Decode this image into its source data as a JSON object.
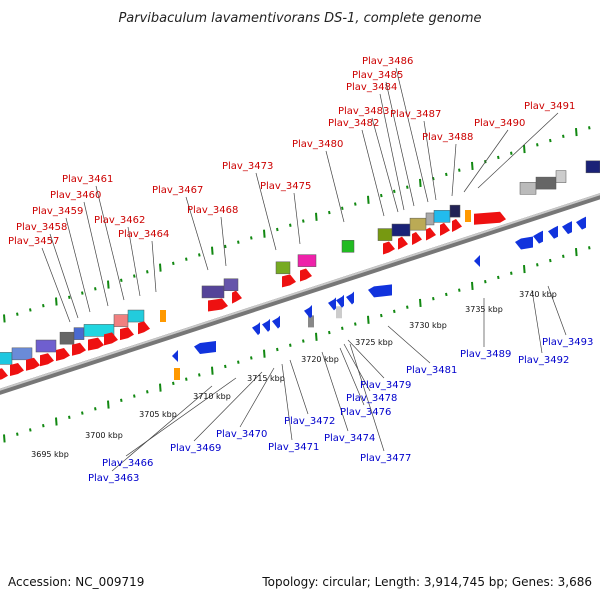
{
  "title": "Parvibaculum lavamentivorans DS-1, complete genome",
  "footer": {
    "accession": "Accession: NC_009719",
    "summary": "Topology: circular; Length: 3,914,745 bp; Genes: 3,686"
  },
  "colors": {
    "forward_gene": "#ee1111",
    "reverse_gene": "#1133dd",
    "rna_gene": "#ff9900",
    "backbone": "#999999",
    "tick": "#118811",
    "label_top": "#cc0000",
    "label_bottom": "#0000cc"
  },
  "scale_labels": [
    "3695 kbp",
    "3700 kbp",
    "3705 kbp",
    "3710 kbp",
    "3715 kbp",
    "3720 kbp",
    "3725 kbp",
    "3730 kbp",
    "3735 kbp",
    "3740 kbp"
  ],
  "forward_gene_labels": [
    "Plav_3457",
    "Plav_3458",
    "Plav_3459",
    "Plav_3460",
    "Plav_3461",
    "Plav_3462",
    "Plav_3464",
    "Plav_3467",
    "Plav_3468",
    "Plav_3473",
    "Plav_3475",
    "Plav_3480",
    "Plav_3482",
    "Plav_3483",
    "Plav_3484",
    "Plav_3485",
    "Plav_3486",
    "Plav_3487",
    "Plav_3488",
    "Plav_3490",
    "Plav_3491"
  ],
  "reverse_gene_labels": [
    "Plav_3463",
    "Plav_3466",
    "Plav_3469",
    "Plav_3470",
    "Plav_3471",
    "Plav_3472",
    "Plav_3474",
    "Plav_3476",
    "Plav_3477",
    "Plav_3478",
    "Plav_3479",
    "Plav_3481",
    "Plav_3489",
    "Plav_3492",
    "Plav_3493"
  ]
}
